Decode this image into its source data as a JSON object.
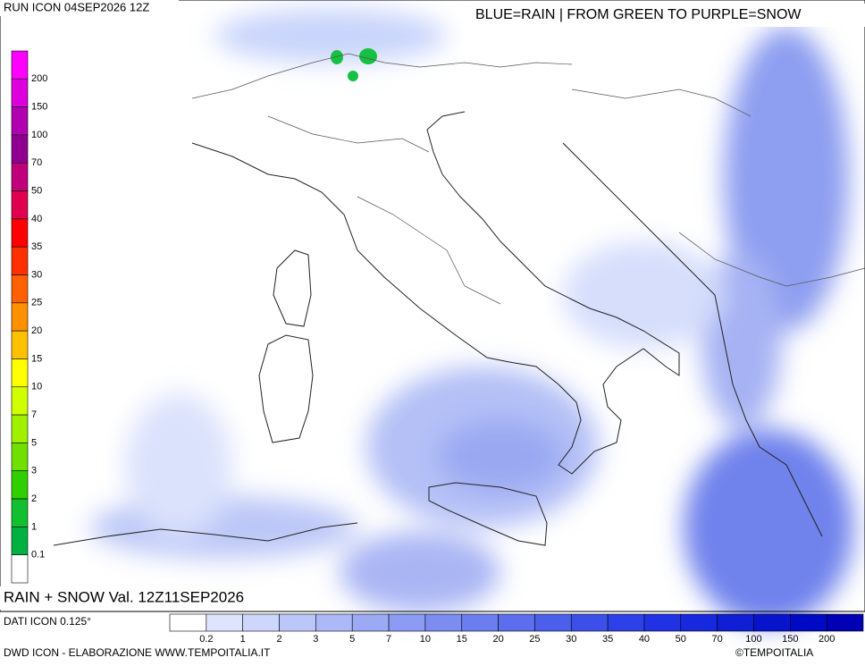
{
  "header": {
    "run": "RUN ICON 04SEP2026 12Z",
    "legend_text": "BLUE=RAIN | FROM GREEN TO PURPLE=SNOW"
  },
  "snow_scale": {
    "labels": [
      "200",
      "150",
      "100",
      "70",
      "50",
      "40",
      "35",
      "30",
      "25",
      "20",
      "15",
      "10",
      "7",
      "5",
      "3",
      "2",
      "1",
      "0.1"
    ]
  },
  "footer": {
    "valid": "RAIN + SNOW Val. 12Z11SEP2026",
    "data_source": "DATI ICON 0.125°",
    "credit": "DWD ICON - ELABORAZIONE WWW.TEMPOITALIA.IT",
    "copyright": "©TEMPOITALIA"
  },
  "rain_scale": {
    "labels": [
      "0.2",
      "1",
      "2",
      "3",
      "5",
      "7",
      "10",
      "15",
      "20",
      "25",
      "30",
      "35",
      "40",
      "50",
      "70",
      "100",
      "150",
      "200"
    ]
  }
}
